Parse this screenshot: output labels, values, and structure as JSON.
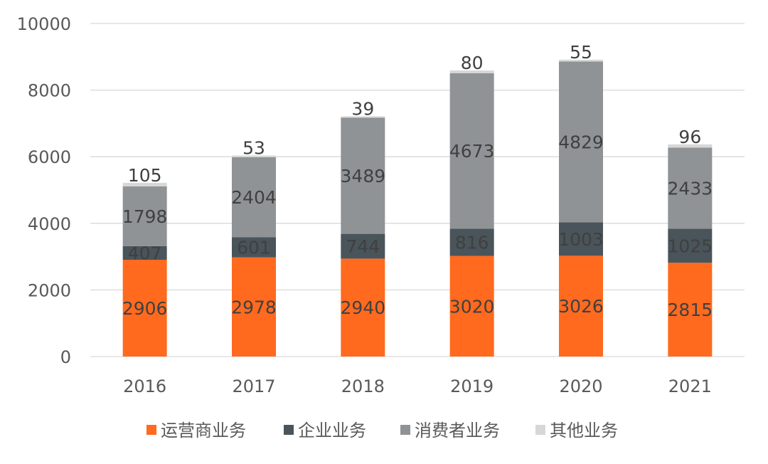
{
  "chart_data": {
    "type": "bar",
    "stacked": true,
    "title": "",
    "xlabel": "",
    "ylabel": "",
    "categories": [
      "2016",
      "2017",
      "2018",
      "2019",
      "2020",
      "2021"
    ],
    "ylim": [
      0,
      10000
    ],
    "yticks": [
      "0",
      "2000",
      "4000",
      "6000",
      "8000",
      "10000"
    ],
    "grid": true,
    "legend_position": "bottom",
    "series": [
      {
        "name": "运营商业务",
        "color": "#FF6A1F",
        "values": [
          2906,
          2978,
          2940,
          3020,
          3026,
          2815
        ]
      },
      {
        "name": "企业业务",
        "color": "#4A545B",
        "values": [
          407,
          601,
          744,
          816,
          1003,
          1025
        ]
      },
      {
        "name": "消费者业务",
        "color": "#909396",
        "values": [
          1798,
          2404,
          3489,
          4673,
          4829,
          2433
        ]
      },
      {
        "name": "其他业务",
        "color": "#D6D7D7",
        "values": [
          105,
          53,
          39,
          80,
          55,
          96
        ]
      }
    ]
  }
}
